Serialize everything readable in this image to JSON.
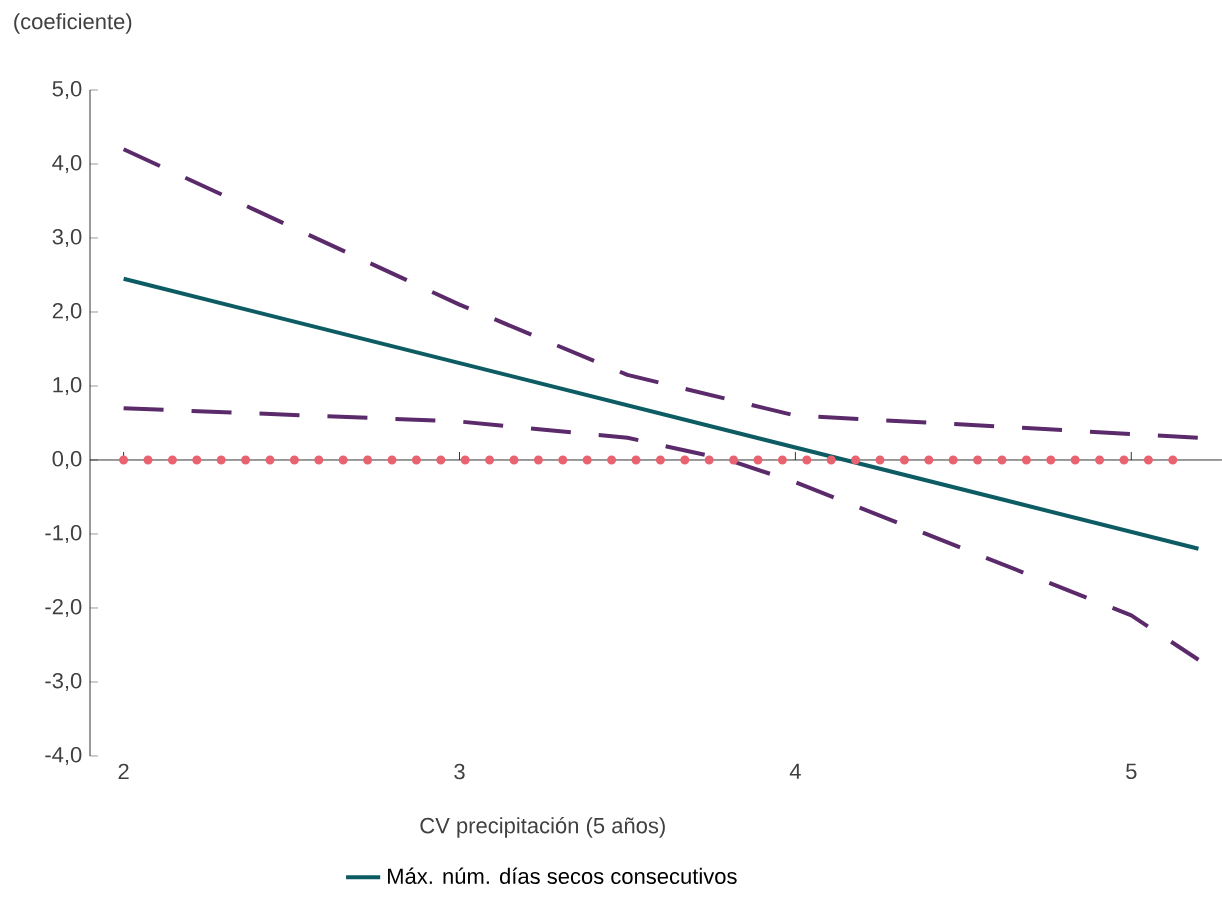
{
  "chart_data": {
    "type": "line",
    "ylabel": "(coeficiente)",
    "xlabel": "CV precipitación (5 años)",
    "xlim": [
      1.9,
      5.27
    ],
    "ylim": [
      -4,
      5
    ],
    "xticks": [
      2,
      3,
      4,
      5
    ],
    "yticks": [
      {
        "value": -4,
        "label": "-4,0"
      },
      {
        "value": -3,
        "label": "-3,0"
      },
      {
        "value": -2,
        "label": "-2,0"
      },
      {
        "value": -1,
        "label": "-1,0"
      },
      {
        "value": 0,
        "label": "0,0"
      },
      {
        "value": 1,
        "label": "1,0"
      },
      {
        "value": 2,
        "label": "2,0"
      },
      {
        "value": 3,
        "label": "3,0"
      },
      {
        "value": 4,
        "label": "4,0"
      },
      {
        "value": 5,
        "label": "5,0"
      }
    ],
    "legend": "bottom",
    "series": [
      {
        "name": "Máx. núm. días secos consecutivos",
        "color": "#0d5c63",
        "line_style": "solid",
        "x": [
          2,
          5.2
        ],
        "values": [
          2.45,
          -1.2
        ]
      },
      {
        "color": "#5b2a6b",
        "line_style": "dashed",
        "x": [
          2,
          3,
          3.5,
          4,
          4.5,
          5.2
        ],
        "values": [
          4.2,
          2.1,
          1.15,
          0.6,
          0.48,
          0.3
        ]
      },
      {
        "color": "#5b2a6b",
        "line_style": "dashed",
        "x": [
          2,
          3,
          3.5,
          3.8,
          4,
          4.5,
          5,
          5.2
        ],
        "values": [
          0.7,
          0.52,
          0.3,
          0.0,
          -0.3,
          -1.2,
          -2.1,
          -2.7
        ]
      },
      {
        "color": "#e8636f",
        "line_style": "dotted",
        "x": [
          2,
          5.14
        ],
        "values": [
          0,
          0
        ]
      }
    ]
  }
}
